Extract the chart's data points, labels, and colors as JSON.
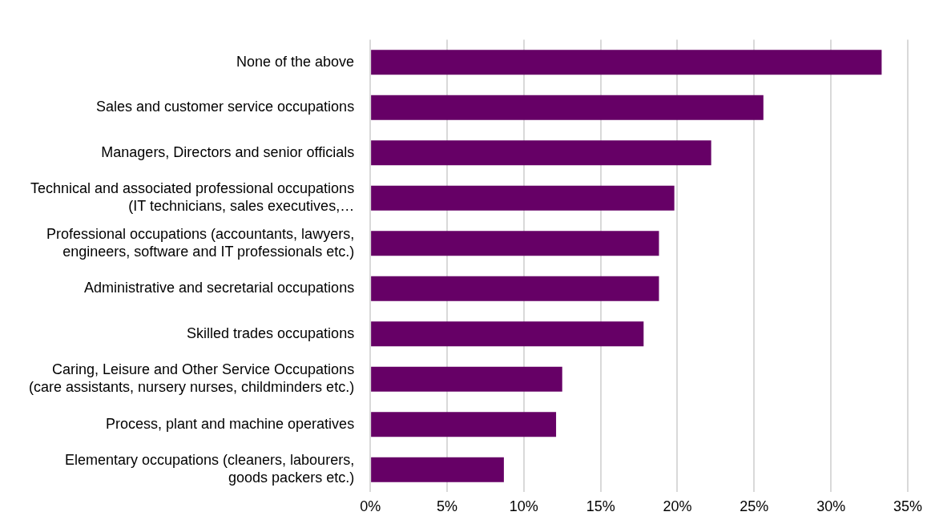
{
  "chart_data": {
    "type": "bar",
    "orientation": "horizontal",
    "categories": [
      "None of the above",
      "Sales and customer service occupations",
      "Managers, Directors and senior officials",
      "Technical and associated professional occupations\n(IT technicians, sales executives,…",
      "Professional occupations (accountants, lawyers,\nengineers, software and IT professionals etc.)",
      "Administrative and secretarial occupations",
      "Skilled trades occupations",
      "Caring, Leisure and Other Service Occupations\n(care assistants, nursery nurses, childminders etc.)",
      "Process, plant and machine operatives",
      "Elementary occupations (cleaners, labourers,\ngoods packers etc.)"
    ],
    "values": [
      33.3,
      25.6,
      22.2,
      19.8,
      18.8,
      18.8,
      17.8,
      12.5,
      12.1,
      8.7
    ],
    "color": "#660066",
    "xlim": [
      0,
      35
    ],
    "xticks": [
      {
        "value": 0,
        "label": "0%"
      },
      {
        "value": 5,
        "label": "5%"
      },
      {
        "value": 10,
        "label": "10%"
      },
      {
        "value": 15,
        "label": "15%"
      },
      {
        "value": 20,
        "label": "20%"
      },
      {
        "value": 25,
        "label": "25%"
      },
      {
        "value": 30,
        "label": "30%"
      },
      {
        "value": 35,
        "label": "35%"
      }
    ],
    "grid": "x"
  }
}
